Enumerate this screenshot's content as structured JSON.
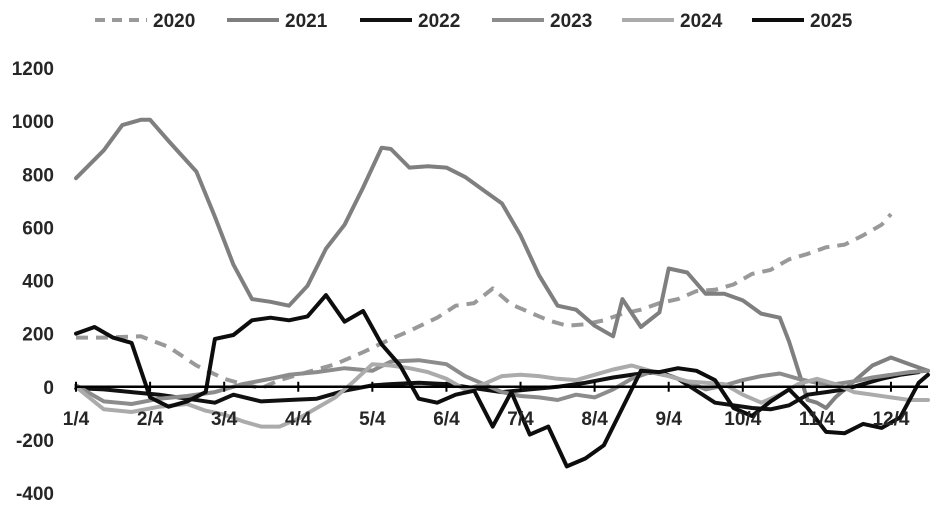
{
  "chart_data": {
    "type": "line",
    "title": "",
    "xlabel": "",
    "ylabel": "",
    "ylim": [
      -400,
      1200
    ],
    "yticks": [
      -400,
      -200,
      0,
      200,
      400,
      600,
      800,
      1000,
      1200
    ],
    "grid": false,
    "legend_position": "top",
    "x_tick_labels": [
      "1/4",
      "2/4",
      "3/4",
      "4/4",
      "5/4",
      "6/4",
      "7/4",
      "8/4",
      "9/4",
      "10/4",
      "11/4",
      "12/4"
    ],
    "series": [
      {
        "name": "2020",
        "color": "#999999",
        "dash": "dashed",
        "points": [
          [
            0,
            185
          ],
          [
            3,
            185
          ],
          [
            7,
            190
          ],
          [
            10,
            150
          ],
          [
            13,
            80
          ],
          [
            16,
            30
          ],
          [
            18,
            10
          ],
          [
            20,
            -5
          ],
          [
            22,
            25
          ],
          [
            25,
            55
          ],
          [
            28,
            85
          ],
          [
            31,
            130
          ],
          [
            34,
            180
          ],
          [
            36,
            210
          ],
          [
            39,
            260
          ],
          [
            41,
            305
          ],
          [
            43,
            315
          ],
          [
            45,
            370
          ],
          [
            47,
            310
          ],
          [
            49,
            280
          ],
          [
            51,
            250
          ],
          [
            53,
            230
          ],
          [
            55,
            235
          ],
          [
            57,
            250
          ],
          [
            59,
            275
          ],
          [
            61,
            290
          ],
          [
            63,
            315
          ],
          [
            65,
            330
          ],
          [
            67,
            360
          ],
          [
            69,
            365
          ],
          [
            71,
            385
          ],
          [
            73,
            425
          ],
          [
            75,
            440
          ],
          [
            77,
            480
          ],
          [
            79,
            500
          ],
          [
            81,
            525
          ],
          [
            83,
            535
          ],
          [
            85,
            570
          ],
          [
            87,
            610
          ],
          [
            88,
            650
          ]
        ]
      },
      {
        "name": "2021",
        "color": "#7f7f7f",
        "dash": "solid",
        "points": [
          [
            0,
            785
          ],
          [
            3,
            890
          ],
          [
            5,
            985
          ],
          [
            7,
            1005
          ],
          [
            8,
            1005
          ],
          [
            10,
            925
          ],
          [
            13,
            810
          ],
          [
            15,
            640
          ],
          [
            17,
            460
          ],
          [
            19,
            330
          ],
          [
            21,
            320
          ],
          [
            23,
            305
          ],
          [
            25,
            380
          ],
          [
            27,
            520
          ],
          [
            29,
            610
          ],
          [
            31,
            750
          ],
          [
            33,
            900
          ],
          [
            34,
            895
          ],
          [
            36,
            825
          ],
          [
            38,
            830
          ],
          [
            40,
            825
          ],
          [
            42,
            790
          ],
          [
            44,
            740
          ],
          [
            46,
            690
          ],
          [
            48,
            570
          ],
          [
            50,
            420
          ],
          [
            52,
            305
          ],
          [
            54,
            290
          ],
          [
            56,
            230
          ],
          [
            58,
            190
          ],
          [
            59,
            330
          ],
          [
            61,
            225
          ],
          [
            63,
            280
          ],
          [
            64,
            445
          ],
          [
            66,
            430
          ],
          [
            68,
            350
          ],
          [
            70,
            350
          ],
          [
            72,
            325
          ],
          [
            74,
            275
          ],
          [
            76,
            260
          ],
          [
            77,
            170
          ],
          [
            79,
            -50
          ],
          [
            80,
            -60
          ],
          [
            81,
            -80
          ],
          [
            82,
            -40
          ],
          [
            84,
            20
          ],
          [
            86,
            80
          ],
          [
            88,
            110
          ],
          [
            90,
            85
          ],
          [
            92,
            60
          ]
        ]
      },
      {
        "name": "2022",
        "color": "#111111",
        "dash": "solid",
        "points": [
          [
            0,
            -5
          ],
          [
            3,
            -10
          ],
          [
            6,
            -20
          ],
          [
            9,
            -30
          ],
          [
            12,
            -45
          ],
          [
            15,
            -60
          ],
          [
            17,
            -30
          ],
          [
            20,
            -55
          ],
          [
            23,
            -50
          ],
          [
            26,
            -45
          ],
          [
            29,
            -15
          ],
          [
            32,
            5
          ],
          [
            34,
            10
          ],
          [
            37,
            15
          ],
          [
            40,
            10
          ],
          [
            43,
            -5
          ],
          [
            46,
            -20
          ],
          [
            49,
            -10
          ],
          [
            52,
            0
          ],
          [
            55,
            15
          ],
          [
            58,
            35
          ],
          [
            61,
            50
          ],
          [
            63,
            55
          ],
          [
            65,
            30
          ],
          [
            67,
            -15
          ],
          [
            69,
            -60
          ],
          [
            71,
            -70
          ],
          [
            73,
            -80
          ],
          [
            75,
            -85
          ],
          [
            77,
            -70
          ],
          [
            79,
            -30
          ],
          [
            81,
            -20
          ],
          [
            83,
            -10
          ],
          [
            85,
            10
          ],
          [
            87,
            30
          ],
          [
            89,
            45
          ],
          [
            91,
            55
          ]
        ]
      },
      {
        "name": "2023",
        "color": "#8c8c8c",
        "dash": "solid",
        "points": [
          [
            0,
            5
          ],
          [
            3,
            -55
          ],
          [
            6,
            -65
          ],
          [
            9,
            -45
          ],
          [
            12,
            -35
          ],
          [
            15,
            -20
          ],
          [
            18,
            10
          ],
          [
            21,
            30
          ],
          [
            23,
            45
          ],
          [
            26,
            55
          ],
          [
            29,
            70
          ],
          [
            32,
            60
          ],
          [
            34,
            95
          ],
          [
            37,
            100
          ],
          [
            40,
            85
          ],
          [
            42,
            40
          ],
          [
            44,
            10
          ],
          [
            46,
            -20
          ],
          [
            48,
            -35
          ],
          [
            50,
            -40
          ],
          [
            52,
            -50
          ],
          [
            54,
            -30
          ],
          [
            56,
            -40
          ],
          [
            58,
            -10
          ],
          [
            60,
            30
          ],
          [
            62,
            55
          ],
          [
            64,
            40
          ],
          [
            66,
            20
          ],
          [
            68,
            -10
          ],
          [
            70,
            5
          ],
          [
            72,
            25
          ],
          [
            74,
            40
          ],
          [
            76,
            50
          ],
          [
            78,
            30
          ],
          [
            80,
            15
          ],
          [
            82,
            10
          ],
          [
            84,
            20
          ],
          [
            86,
            35
          ],
          [
            88,
            45
          ],
          [
            90,
            55
          ],
          [
            92,
            60
          ]
        ]
      },
      {
        "name": "2024",
        "color": "#ababab",
        "dash": "solid",
        "points": [
          [
            0,
            0
          ],
          [
            3,
            -85
          ],
          [
            6,
            -95
          ],
          [
            9,
            -75
          ],
          [
            12,
            -65
          ],
          [
            14,
            -90
          ],
          [
            16,
            -105
          ],
          [
            18,
            -130
          ],
          [
            20,
            -150
          ],
          [
            22,
            -150
          ],
          [
            24,
            -120
          ],
          [
            26,
            -80
          ],
          [
            28,
            -40
          ],
          [
            30,
            20
          ],
          [
            32,
            85
          ],
          [
            34,
            80
          ],
          [
            36,
            70
          ],
          [
            38,
            55
          ],
          [
            40,
            30
          ],
          [
            42,
            -10
          ],
          [
            44,
            10
          ],
          [
            46,
            40
          ],
          [
            48,
            45
          ],
          [
            50,
            40
          ],
          [
            52,
            30
          ],
          [
            54,
            25
          ],
          [
            56,
            45
          ],
          [
            58,
            65
          ],
          [
            60,
            80
          ],
          [
            62,
            60
          ],
          [
            64,
            40
          ],
          [
            66,
            20
          ],
          [
            68,
            15
          ],
          [
            70,
            10
          ],
          [
            72,
            -30
          ],
          [
            74,
            -60
          ],
          [
            76,
            -30
          ],
          [
            78,
            10
          ],
          [
            80,
            30
          ],
          [
            82,
            10
          ],
          [
            84,
            -20
          ],
          [
            86,
            -30
          ],
          [
            88,
            -40
          ],
          [
            90,
            -50
          ],
          [
            92,
            -50
          ]
        ]
      },
      {
        "name": "2025",
        "color": "#0d0d0d",
        "dash": "solid",
        "points": [
          [
            0,
            200
          ],
          [
            2,
            225
          ],
          [
            4,
            185
          ],
          [
            6,
            165
          ],
          [
            8,
            -40
          ],
          [
            10,
            -75
          ],
          [
            12,
            -55
          ],
          [
            14,
            -20
          ],
          [
            15,
            180
          ],
          [
            17,
            195
          ],
          [
            19,
            250
          ],
          [
            21,
            260
          ],
          [
            23,
            250
          ],
          [
            25,
            265
          ],
          [
            27,
            345
          ],
          [
            29,
            245
          ],
          [
            31,
            285
          ],
          [
            33,
            160
          ],
          [
            35,
            80
          ],
          [
            37,
            -45
          ],
          [
            39,
            -60
          ],
          [
            41,
            -30
          ],
          [
            43,
            -15
          ],
          [
            45,
            -150
          ],
          [
            47,
            -20
          ],
          [
            49,
            -180
          ],
          [
            51,
            -150
          ],
          [
            53,
            -300
          ],
          [
            55,
            -270
          ],
          [
            57,
            -220
          ],
          [
            59,
            -80
          ],
          [
            61,
            60
          ],
          [
            63,
            55
          ],
          [
            65,
            70
          ],
          [
            67,
            60
          ],
          [
            69,
            25
          ],
          [
            71,
            -80
          ],
          [
            73,
            -110
          ],
          [
            75,
            -55
          ],
          [
            77,
            -10
          ],
          [
            79,
            -80
          ],
          [
            81,
            -170
          ],
          [
            83,
            -175
          ],
          [
            85,
            -140
          ],
          [
            87,
            -155
          ],
          [
            89,
            -115
          ],
          [
            91,
            15
          ],
          [
            92,
            45
          ]
        ]
      }
    ]
  }
}
